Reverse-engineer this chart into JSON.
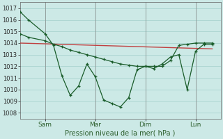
{
  "background_color": "#cce9e6",
  "grid_color": "#aad4d0",
  "line_color": "#1a5c2a",
  "title": "Pression niveau de la mer( hPa )",
  "x_tick_positions": [
    6,
    18,
    30,
    42
  ],
  "x_tick_labels": [
    "Sam",
    "Mar",
    "Dim",
    "Lun"
  ],
  "ylim": [
    1007.5,
    1017.5
  ],
  "yticks": [
    1008,
    1009,
    1010,
    1011,
    1012,
    1013,
    1014,
    1015,
    1016,
    1017
  ],
  "xlim": [
    0,
    48
  ],
  "main_x": [
    0,
    2,
    6,
    8,
    10,
    12,
    14,
    16,
    18,
    20,
    22,
    24,
    26,
    28,
    30,
    32,
    34,
    36,
    38,
    40,
    42,
    44,
    46
  ],
  "main_y": [
    1016.7,
    1016.0,
    1014.8,
    1013.8,
    1011.2,
    1009.5,
    1010.3,
    1012.2,
    1011.1,
    1009.1,
    1008.8,
    1008.5,
    1009.3,
    1011.7,
    1012.0,
    1011.8,
    1012.2,
    1012.8,
    1013.0,
    1010.0,
    1013.3,
    1013.9,
    1013.9
  ],
  "second_x": [
    0,
    2,
    6,
    8,
    10,
    12,
    14,
    16,
    18,
    20,
    22,
    24,
    26,
    28,
    30,
    32,
    34,
    36,
    38,
    40,
    42,
    44,
    46
  ],
  "second_y": [
    1014.8,
    1014.5,
    1014.2,
    1013.9,
    1013.7,
    1013.4,
    1013.2,
    1013.0,
    1012.8,
    1012.6,
    1012.4,
    1012.2,
    1012.1,
    1012.0,
    1012.0,
    1012.0,
    1012.0,
    1012.5,
    1013.8,
    1013.9,
    1014.0,
    1014.0,
    1014.0
  ],
  "trend_x": [
    0,
    46
  ],
  "trend_y": [
    1014.0,
    1013.5
  ],
  "vline_x": [
    6,
    18,
    30,
    42
  ]
}
